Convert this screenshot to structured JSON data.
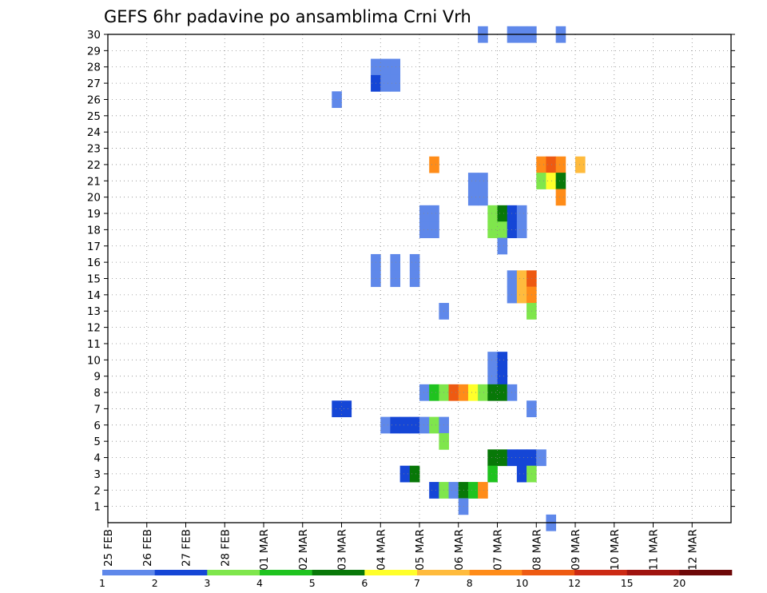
{
  "chart_data": {
    "type": "heatmap",
    "title": "GEFS 6hr padavine po ansamblima Crni Vrh",
    "xlabel": "",
    "ylabel": "",
    "x_tick_labels": [
      "25 FEB",
      "26 FEB",
      "27 FEB",
      "28 FEB",
      "01 MAR",
      "02 MAR",
      "03 MAR",
      "04 MAR",
      "05 MAR",
      "06 MAR",
      "07 MAR",
      "08 MAR",
      "09 MAR",
      "10 MAR",
      "11 MAR",
      "12 MAR"
    ],
    "x_range_days": [
      0,
      16
    ],
    "steps_per_day": 4,
    "y_tick_labels": [
      "1",
      "2",
      "3",
      "4",
      "5",
      "6",
      "7",
      "8",
      "9",
      "10",
      "11",
      "12",
      "13",
      "14",
      "15",
      "16",
      "17",
      "18",
      "19",
      "20",
      "21",
      "22",
      "23",
      "24",
      "25",
      "26",
      "27",
      "28",
      "29",
      "30"
    ],
    "y_range": [
      0,
      30
    ],
    "grid": true,
    "legend_position": "bottom",
    "legend": {
      "colors": [
        "#b3c6f2",
        "#5f88ea",
        "#1546d6",
        "#7fe64c",
        "#1fc31f",
        "#087808",
        "#ffff2a",
        "#ffbb3d",
        "#ff8c19",
        "#ee5a12",
        "#cc2a14",
        "#a0140f",
        "#6e0808"
      ],
      "labels": [
        "1",
        "2",
        "3",
        "4",
        "5",
        "6",
        "7",
        "8",
        "10",
        "12",
        "15",
        "20"
      ]
    },
    "series": [
      {
        "member": 30,
        "cells": [
          [
            9.5,
            1
          ],
          [
            10.25,
            1
          ],
          [
            10.5,
            1
          ],
          [
            10.75,
            1
          ],
          [
            11.5,
            1
          ]
        ]
      },
      {
        "member": 28,
        "cells": [
          [
            6.75,
            1
          ],
          [
            7.0,
            1
          ],
          [
            7.25,
            1
          ]
        ]
      },
      {
        "member": 27,
        "cells": [
          [
            6.75,
            2
          ],
          [
            7.0,
            1
          ],
          [
            7.25,
            1
          ]
        ]
      },
      {
        "member": 26,
        "cells": [
          [
            5.75,
            1
          ]
        ]
      },
      {
        "member": 22,
        "cells": [
          [
            8.25,
            8
          ],
          [
            11.0,
            8
          ],
          [
            11.25,
            9
          ],
          [
            11.5,
            8
          ],
          [
            12.0,
            7
          ]
        ]
      },
      {
        "member": 21,
        "cells": [
          [
            9.25,
            1
          ],
          [
            9.5,
            1
          ],
          [
            11.0,
            3
          ],
          [
            11.25,
            6
          ],
          [
            11.5,
            5
          ]
        ]
      },
      {
        "member": 20,
        "cells": [
          [
            9.25,
            1
          ],
          [
            9.5,
            1
          ],
          [
            11.5,
            8
          ]
        ]
      },
      {
        "member": 19,
        "cells": [
          [
            8.0,
            1
          ],
          [
            8.25,
            1
          ],
          [
            9.75,
            3
          ],
          [
            10.0,
            5
          ],
          [
            10.25,
            2
          ],
          [
            10.5,
            1
          ]
        ]
      },
      {
        "member": 18,
        "cells": [
          [
            8.0,
            1
          ],
          [
            8.25,
            1
          ],
          [
            9.75,
            3
          ],
          [
            10.0,
            3
          ],
          [
            10.25,
            2
          ],
          [
            10.5,
            1
          ]
        ]
      },
      {
        "member": 17,
        "cells": [
          [
            10.0,
            1
          ]
        ]
      },
      {
        "member": 16,
        "cells": [
          [
            6.75,
            1
          ],
          [
            7.25,
            1
          ],
          [
            7.75,
            1
          ]
        ]
      },
      {
        "member": 15,
        "cells": [
          [
            6.75,
            1
          ],
          [
            7.25,
            1
          ],
          [
            7.75,
            1
          ],
          [
            10.25,
            1
          ],
          [
            10.5,
            7
          ],
          [
            10.75,
            9
          ]
        ]
      },
      {
        "member": 14,
        "cells": [
          [
            10.25,
            1
          ],
          [
            10.5,
            7
          ],
          [
            10.75,
            8
          ]
        ]
      },
      {
        "member": 13,
        "cells": [
          [
            8.5,
            1
          ],
          [
            10.75,
            3
          ]
        ]
      },
      {
        "member": 10,
        "cells": [
          [
            9.75,
            1
          ],
          [
            10.0,
            2
          ]
        ]
      },
      {
        "member": 9,
        "cells": [
          [
            9.75,
            1
          ],
          [
            10.0,
            2
          ]
        ]
      },
      {
        "member": 8,
        "cells": [
          [
            8.0,
            1
          ],
          [
            8.25,
            4
          ],
          [
            8.5,
            3
          ],
          [
            8.75,
            9
          ],
          [
            9.0,
            8
          ],
          [
            9.25,
            6
          ],
          [
            9.5,
            3
          ],
          [
            9.75,
            5
          ],
          [
            10.0,
            5
          ],
          [
            10.25,
            1
          ]
        ]
      },
      {
        "member": 7,
        "cells": [
          [
            5.75,
            2
          ],
          [
            6.0,
            2
          ],
          [
            10.75,
            1
          ]
        ]
      },
      {
        "member": 6,
        "cells": [
          [
            7.0,
            1
          ],
          [
            7.25,
            2
          ],
          [
            7.5,
            2
          ],
          [
            7.75,
            2
          ],
          [
            8.0,
            1
          ],
          [
            8.25,
            3
          ],
          [
            8.5,
            1
          ]
        ]
      },
      {
        "member": 5,
        "cells": [
          [
            8.5,
            3
          ]
        ]
      },
      {
        "member": 4,
        "cells": [
          [
            9.75,
            5
          ],
          [
            10.0,
            5
          ],
          [
            10.25,
            2
          ],
          [
            10.5,
            2
          ],
          [
            10.75,
            2
          ],
          [
            11.0,
            1
          ]
        ]
      },
      {
        "member": 3,
        "cells": [
          [
            7.5,
            2
          ],
          [
            7.75,
            5
          ],
          [
            9.75,
            4
          ],
          [
            10.5,
            2
          ],
          [
            10.75,
            3
          ]
        ]
      },
      {
        "member": 2,
        "cells": [
          [
            8.25,
            2
          ],
          [
            8.5,
            3
          ],
          [
            8.75,
            1
          ],
          [
            9.0,
            5
          ],
          [
            9.25,
            4
          ],
          [
            9.5,
            8
          ]
        ]
      },
      {
        "member": 1,
        "cells": [
          [
            9.0,
            1
          ]
        ]
      },
      {
        "member": 0,
        "cells": [
          [
            11.25,
            1
          ]
        ]
      }
    ]
  }
}
